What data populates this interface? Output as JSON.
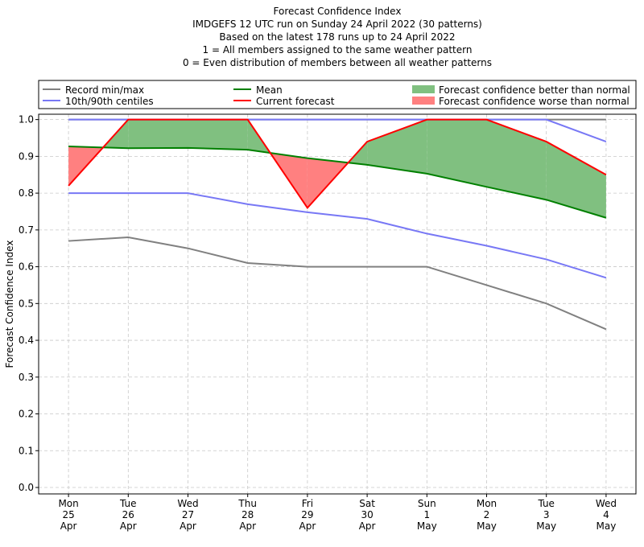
{
  "chart_data": {
    "type": "line",
    "title_lines": [
      "Forecast Confidence Index",
      "IMDGEFS 12 UTC run on Sunday 24 April 2022 (30 patterns)",
      "Based on the latest 178 runs up to 24 April 2022",
      "1 = All members assigned to the same weather pattern",
      "0 = Even distribution of members between all weather patterns"
    ],
    "y_label": "Forecast Confidence Index",
    "categories": [
      [
        "Mon",
        "25",
        "Apr"
      ],
      [
        "Tue",
        "26",
        "Apr"
      ],
      [
        "Wed",
        "27",
        "Apr"
      ],
      [
        "Thu",
        "28",
        "Apr"
      ],
      [
        "Fri",
        "29",
        "Apr"
      ],
      [
        "Sat",
        "30",
        "Apr"
      ],
      [
        "Sun",
        "1",
        "May"
      ],
      [
        "Mon",
        "2",
        "May"
      ],
      [
        "Tue",
        "3",
        "May"
      ],
      [
        "Wed",
        "4",
        "May"
      ]
    ],
    "bands": [
      {
        "name": "Record min/max",
        "color": "#808080",
        "lower": [
          0.67,
          0.68,
          0.65,
          0.61,
          0.6,
          0.6,
          0.6,
          0.55,
          0.5,
          0.43
        ],
        "upper": [
          1.0,
          1.0,
          1.0,
          1.0,
          1.0,
          1.0,
          1.0,
          1.0,
          1.0,
          1.0
        ]
      },
      {
        "name": "10th/90th centiles",
        "color": "#7878f5",
        "lower": [
          0.8,
          0.8,
          0.8,
          0.77,
          0.748,
          0.73,
          0.69,
          0.657,
          0.62,
          0.57
        ],
        "upper": [
          1.0,
          1.0,
          1.0,
          1.0,
          1.0,
          1.0,
          1.0,
          1.0,
          1.0,
          0.94
        ]
      }
    ],
    "series": [
      {
        "name": "Mean",
        "color": "#008000",
        "values": [
          0.927,
          0.922,
          0.923,
          0.918,
          0.895,
          0.877,
          0.853,
          0.817,
          0.782,
          0.733
        ]
      },
      {
        "name": "Current forecast",
        "color": "#ff0000",
        "values": [
          0.82,
          1.0,
          1.0,
          1.0,
          0.76,
          0.94,
          1.0,
          1.0,
          0.94,
          0.85
        ]
      }
    ],
    "fills": [
      {
        "name": "Forecast confidence better than normal",
        "color": "#80c080"
      },
      {
        "name": "Forecast confidence worse than normal",
        "color": "#ff8080"
      }
    ],
    "ylim": [
      -0.0175,
      1.0145
    ],
    "yticks": [
      {
        "value": 0.0,
        "label": "0.0"
      },
      0.1,
      0.2,
      0.3,
      0.4,
      0.5,
      0.6,
      0.7,
      0.8,
      0.9,
      {
        "value": 1.0,
        "label": "1.0"
      }
    ],
    "grid": true
  }
}
